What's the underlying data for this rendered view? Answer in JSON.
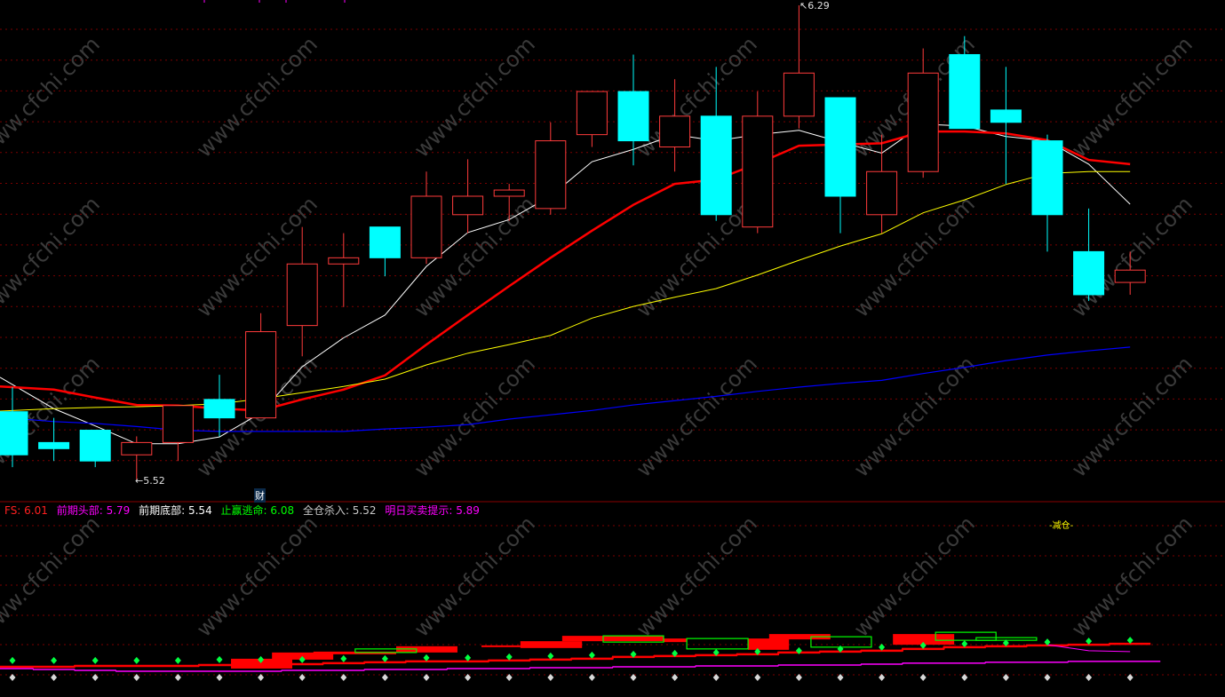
{
  "watermark": "www.cfchi.com",
  "colors": {
    "up": "#ff3b3b",
    "down": "#00ffff",
    "ma_fast": "#ffffff",
    "ma_mid": "#ff0000",
    "ma_slow": "#ffff00",
    "ma_long": "#0000ff",
    "grid": "#7a0000"
  },
  "chart_data": [
    {
      "type": "candlestick",
      "price_range": [
        5.52,
        6.29
      ],
      "grid": true,
      "annotations": {
        "high_label": "6.29",
        "low_label": "5.52",
        "marker": "财"
      },
      "candles": [
        {
          "o": 5.63,
          "h": 5.67,
          "l": 5.54,
          "c": 5.56
        },
        {
          "o": 5.58,
          "h": 5.62,
          "l": 5.55,
          "c": 5.57
        },
        {
          "o": 5.6,
          "h": 5.6,
          "l": 5.54,
          "c": 5.55
        },
        {
          "o": 5.56,
          "h": 5.59,
          "l": 5.52,
          "c": 5.58
        },
        {
          "o": 5.58,
          "h": 5.64,
          "l": 5.55,
          "c": 5.64
        },
        {
          "o": 5.65,
          "h": 5.69,
          "l": 5.59,
          "c": 5.62
        },
        {
          "o": 5.62,
          "h": 5.79,
          "l": 5.62,
          "c": 5.76
        },
        {
          "o": 5.77,
          "h": 5.93,
          "l": 5.72,
          "c": 5.87
        },
        {
          "o": 5.87,
          "h": 5.92,
          "l": 5.8,
          "c": 5.88
        },
        {
          "o": 5.93,
          "h": 5.93,
          "l": 5.85,
          "c": 5.88
        },
        {
          "o": 5.88,
          "h": 6.02,
          "l": 5.87,
          "c": 5.98
        },
        {
          "o": 5.95,
          "h": 6.04,
          "l": 5.92,
          "c": 5.98
        },
        {
          "o": 5.98,
          "h": 6.0,
          "l": 5.94,
          "c": 5.99
        },
        {
          "o": 5.96,
          "h": 6.1,
          "l": 5.95,
          "c": 6.07
        },
        {
          "o": 6.08,
          "h": 6.15,
          "l": 6.06,
          "c": 6.15
        },
        {
          "o": 6.15,
          "h": 6.21,
          "l": 6.03,
          "c": 6.07
        },
        {
          "o": 6.06,
          "h": 6.17,
          "l": 6.02,
          "c": 6.11
        },
        {
          "o": 6.11,
          "h": 6.19,
          "l": 5.94,
          "c": 5.95
        },
        {
          "o": 5.93,
          "h": 6.15,
          "l": 5.92,
          "c": 6.11
        },
        {
          "o": 6.11,
          "h": 6.29,
          "l": 6.09,
          "c": 6.18
        },
        {
          "o": 6.14,
          "h": 6.14,
          "l": 5.92,
          "c": 5.98
        },
        {
          "o": 5.95,
          "h": 6.08,
          "l": 5.92,
          "c": 6.02
        },
        {
          "o": 6.02,
          "h": 6.22,
          "l": 6.01,
          "c": 6.18
        },
        {
          "o": 6.21,
          "h": 6.24,
          "l": 6.09,
          "c": 6.09
        },
        {
          "o": 6.12,
          "h": 6.19,
          "l": 6.0,
          "c": 6.1
        },
        {
          "o": 6.07,
          "h": 6.08,
          "l": 5.89,
          "c": 5.95
        },
        {
          "o": 5.89,
          "h": 5.96,
          "l": 5.81,
          "c": 5.82
        },
        {
          "o": 5.84,
          "h": 5.89,
          "l": 5.82,
          "c": 5.86
        }
      ],
      "moving_averages": [
        {
          "key": "ma_fast",
          "values": [
            5.686,
            5.635,
            5.607,
            5.578,
            5.578,
            5.589,
            5.628,
            5.703,
            5.75,
            5.787,
            5.866,
            5.921,
            5.942,
            5.98,
            6.036,
            6.056,
            6.08,
            6.07,
            6.08,
            6.087,
            6.068,
            6.05,
            6.097,
            6.094,
            6.077,
            6.07,
            6.032,
            5.967
          ]
        },
        {
          "key": "ma_mid",
          "values": [
            5.671,
            5.666,
            5.653,
            5.641,
            5.64,
            5.635,
            5.632,
            5.65,
            5.666,
            5.689,
            5.739,
            5.787,
            5.834,
            5.88,
            5.924,
            5.966,
            6.0,
            6.007,
            6.033,
            6.062,
            6.064,
            6.066,
            6.085,
            6.085,
            6.082,
            6.071,
            6.039,
            6.032
          ]
        },
        {
          "key": "ma_slow",
          "values": [
            5.631,
            5.635,
            5.637,
            5.638,
            5.64,
            5.643,
            5.651,
            5.661,
            5.671,
            5.683,
            5.706,
            5.725,
            5.739,
            5.754,
            5.782,
            5.801,
            5.816,
            5.83,
            5.852,
            5.876,
            5.899,
            5.919,
            5.953,
            5.974,
            5.999,
            6.017,
            6.02,
            6.02
          ]
        },
        {
          "key": "ma_long",
          "values": [
            5.621,
            5.614,
            5.611,
            5.606,
            5.6,
            5.598,
            5.598,
            5.598,
            5.598,
            5.602,
            5.605,
            5.609,
            5.618,
            5.625,
            5.632,
            5.641,
            5.648,
            5.655,
            5.663,
            5.67,
            5.676,
            5.681,
            5.692,
            5.702,
            5.713,
            5.722,
            5.729,
            5.735
          ]
        }
      ]
    },
    {
      "type": "indicator",
      "legend": [
        {
          "label": "FS: 6.01",
          "color": "#ff2020"
        },
        {
          "label": "前期头部: 5.79",
          "color": "#ff00ff"
        },
        {
          "label": "前期底部: 5.54",
          "color": "#ffffff"
        },
        {
          "label": "止赢逃命: 6.08",
          "color": "#00ff00"
        },
        {
          "label": "全仓杀入: 5.52",
          "color": "#c8c8c8"
        },
        {
          "label": "明日买卖提示: 5.89",
          "color": "#ff00ff"
        }
      ],
      "signal_label": "-减仓-",
      "red_line": [
        0.27,
        0.27,
        0.3,
        0.3,
        0.3,
        0.33,
        0.33,
        0.36,
        0.39,
        0.42,
        0.45,
        0.45,
        0.48,
        0.51,
        0.54,
        0.6,
        0.63,
        0.66,
        0.69,
        0.75,
        0.78,
        0.81,
        0.87,
        0.93,
        0.96,
        0.99,
        1.01,
        1.04
      ],
      "magenta_line": [
        0.21,
        0.18,
        0.15,
        0.12,
        0.12,
        0.12,
        0.12,
        0.15,
        0.15,
        0.18,
        0.18,
        0.21,
        0.21,
        0.24,
        0.24,
        0.27,
        0.27,
        0.3,
        0.3,
        0.33,
        0.33,
        0.36,
        0.39,
        0.39,
        0.42,
        0.42,
        0.45,
        0.45
      ],
      "green_dots": [
        0.48,
        0.48,
        0.48,
        0.48,
        0.48,
        0.51,
        0.51,
        0.51,
        0.54,
        0.54,
        0.57,
        0.57,
        0.6,
        0.63,
        0.66,
        0.69,
        0.72,
        0.75,
        0.78,
        0.81,
        0.87,
        0.93,
        0.99,
        1.04,
        1.07,
        1.1,
        1.13,
        1.16
      ],
      "red_blocks": [
        {
          "from": 5.28,
          "to": 6.76,
          "hi": 0.54,
          "lo": 0.21
        },
        {
          "from": 6.27,
          "to": 7.75,
          "hi": 0.75,
          "lo": 0.51
        },
        {
          "from": 7.27,
          "to": 9.27,
          "hi": 0.78,
          "lo": 0.69
        },
        {
          "from": 9.27,
          "to": 10.75,
          "hi": 0.96,
          "lo": 0.75
        },
        {
          "from": 11.33,
          "to": 12.27,
          "hi": 0.99,
          "lo": 0.93
        },
        {
          "from": 12.27,
          "to": 13.76,
          "hi": 1.13,
          "lo": 0.9
        },
        {
          "from": 13.28,
          "to": 15.73,
          "hi": 1.31,
          "lo": 1.13
        },
        {
          "from": 15.73,
          "to": 16.29,
          "hi": 1.22,
          "lo": 1.1
        },
        {
          "from": 17.77,
          "to": 18.76,
          "hi": 1.22,
          "lo": 0.84
        },
        {
          "from": 18.28,
          "to": 19.76,
          "hi": 1.37,
          "lo": 1.19
        },
        {
          "from": 21.27,
          "to": 22.75,
          "hi": 1.37,
          "lo": 1.01
        }
      ],
      "green_boxes": [
        {
          "from": 8.28,
          "to": 9.76,
          "hi": 0.87,
          "lo": 0.75
        },
        {
          "from": 14.27,
          "to": 15.73,
          "hi": 1.31,
          "lo": 1.1
        },
        {
          "from": 16.29,
          "to": 17.77,
          "hi": 1.22,
          "lo": 0.87
        },
        {
          "from": 19.29,
          "to": 20.75,
          "hi": 1.28,
          "lo": 0.93
        },
        {
          "from": 22.3,
          "to": 23.76,
          "hi": 1.43,
          "lo": 1.16
        },
        {
          "from": 23.28,
          "to": 24.74,
          "hi": 1.25,
          "lo": 1.16
        }
      ]
    }
  ]
}
